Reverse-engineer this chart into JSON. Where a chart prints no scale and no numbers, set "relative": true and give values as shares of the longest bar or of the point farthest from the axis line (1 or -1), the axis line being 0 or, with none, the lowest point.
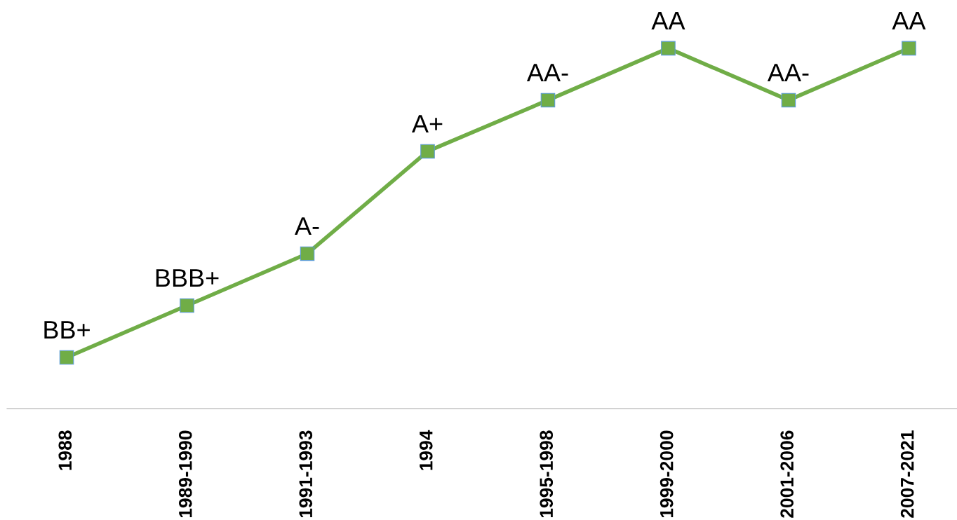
{
  "chart_data": {
    "type": "line",
    "relative": true,
    "categories": [
      "1988",
      "1989-1990",
      "1991-1993",
      "1994",
      "1995-1998",
      "1999-2000",
      "2001-2006",
      "2007-2021"
    ],
    "series": [
      {
        "color": "#70ad47",
        "values": [
          0.142,
          0.286,
          0.43,
          0.714,
          0.856,
          1,
          0.856,
          1
        ]
      }
    ],
    "annotations": [
      {
        "text": "BB+",
        "x": "1988",
        "y": 0.142
      },
      {
        "text": "BBB+",
        "x": "1989-1990",
        "y": 0.286
      },
      {
        "text": "A-",
        "x": "1991-1993",
        "y": 0.43
      },
      {
        "text": "A+",
        "x": "1994",
        "y": 0.714
      },
      {
        "text": "AA-",
        "x": "1995-1998",
        "y": 0.856
      },
      {
        "text": "AA",
        "x": "1999-2000",
        "y": 1
      },
      {
        "text": "AA-",
        "x": "2001-2006",
        "y": 0.856
      },
      {
        "text": "AA",
        "x": "2007-2021",
        "y": 1
      }
    ],
    "marker": "square",
    "line_style": "solid",
    "grid": false,
    "legend": false,
    "tick_labels": "x"
  }
}
